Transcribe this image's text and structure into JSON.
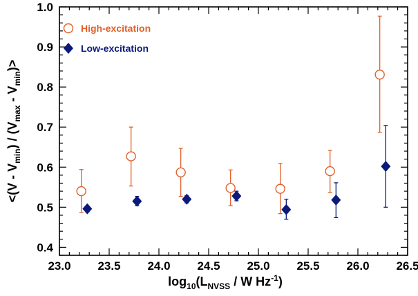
{
  "chart_data": {
    "type": "scatter",
    "title": "",
    "xlabel": {
      "prefix": "log",
      "prefix_sub": "10",
      "open": "(L",
      "sub": "NVSS",
      "mid": " / W Hz",
      "sup": "-1",
      "close": ")"
    },
    "ylabel": {
      "p1": "<(V - V",
      "s1": "min",
      "p2": ") / (V",
      "s2": "max",
      "p3": " - V",
      "s3": "min",
      "p4": ")>"
    },
    "xlim": [
      23.0,
      26.5
    ],
    "ylim": [
      0.38,
      1.0
    ],
    "xticks": [
      23.0,
      23.5,
      24.0,
      24.5,
      25.0,
      25.5,
      26.0,
      26.5
    ],
    "xtick_labels": [
      "23.0",
      "23.5",
      "24.0",
      "24.5",
      "25.0",
      "25.5",
      "26.0",
      "26.5"
    ],
    "yticks": [
      0.4,
      0.5,
      0.6,
      0.7,
      0.8,
      0.9,
      1.0
    ],
    "ytick_labels": [
      "0.4",
      "0.5",
      "0.6",
      "0.7",
      "0.8",
      "0.9",
      "1.0"
    ],
    "grid": false,
    "legend_position": "top-left",
    "series": [
      {
        "name": "High-excitation",
        "marker": "open-circle",
        "color": "#e0602a",
        "x": [
          23.22,
          23.72,
          24.22,
          24.72,
          25.22,
          25.72,
          26.22
        ],
        "y": [
          0.54,
          0.627,
          0.587,
          0.548,
          0.546,
          0.59,
          0.831
        ],
        "err_low": [
          0.487,
          0.553,
          0.527,
          0.504,
          0.484,
          0.537,
          0.687
        ],
        "err_high": [
          0.594,
          0.7,
          0.647,
          0.593,
          0.609,
          0.642,
          0.977
        ]
      },
      {
        "name": "Low-excitation",
        "marker": "filled-diamond",
        "color": "#0b1a7a",
        "x": [
          23.28,
          23.78,
          24.28,
          24.78,
          25.28,
          25.78,
          26.28
        ],
        "y": [
          0.496,
          0.515,
          0.52,
          0.528,
          0.494,
          0.518,
          0.602
        ],
        "err_low": [
          0.488,
          0.504,
          0.511,
          0.516,
          0.47,
          0.474,
          0.5
        ],
        "err_high": [
          0.503,
          0.527,
          0.529,
          0.54,
          0.52,
          0.561,
          0.704
        ]
      }
    ]
  }
}
